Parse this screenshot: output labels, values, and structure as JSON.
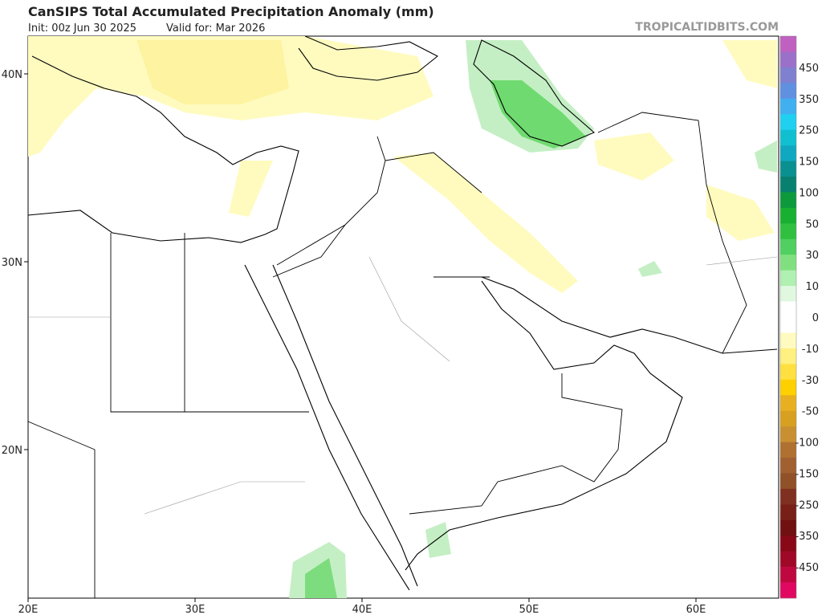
{
  "header": {
    "title": "CanSIPS Total Accumulated Precipitation Anomaly (mm)",
    "init": "Init: 00z Jun 30 2025",
    "valid": "Valid for: Mar 2026",
    "source": "TROPICALTIDBITS.COM"
  },
  "map": {
    "lat_labels": [
      "40N",
      "30N",
      "20N"
    ],
    "lon_labels": [
      "20E",
      "30E",
      "40E",
      "50E",
      "60E"
    ]
  },
  "colorbar": {
    "labels": [
      "450",
      "350",
      "250",
      "150",
      "100",
      "50",
      "30",
      "10",
      "0",
      "-10",
      "-30",
      "-50",
      "-100",
      "-150",
      "-250",
      "-350",
      "-450"
    ]
  }
}
